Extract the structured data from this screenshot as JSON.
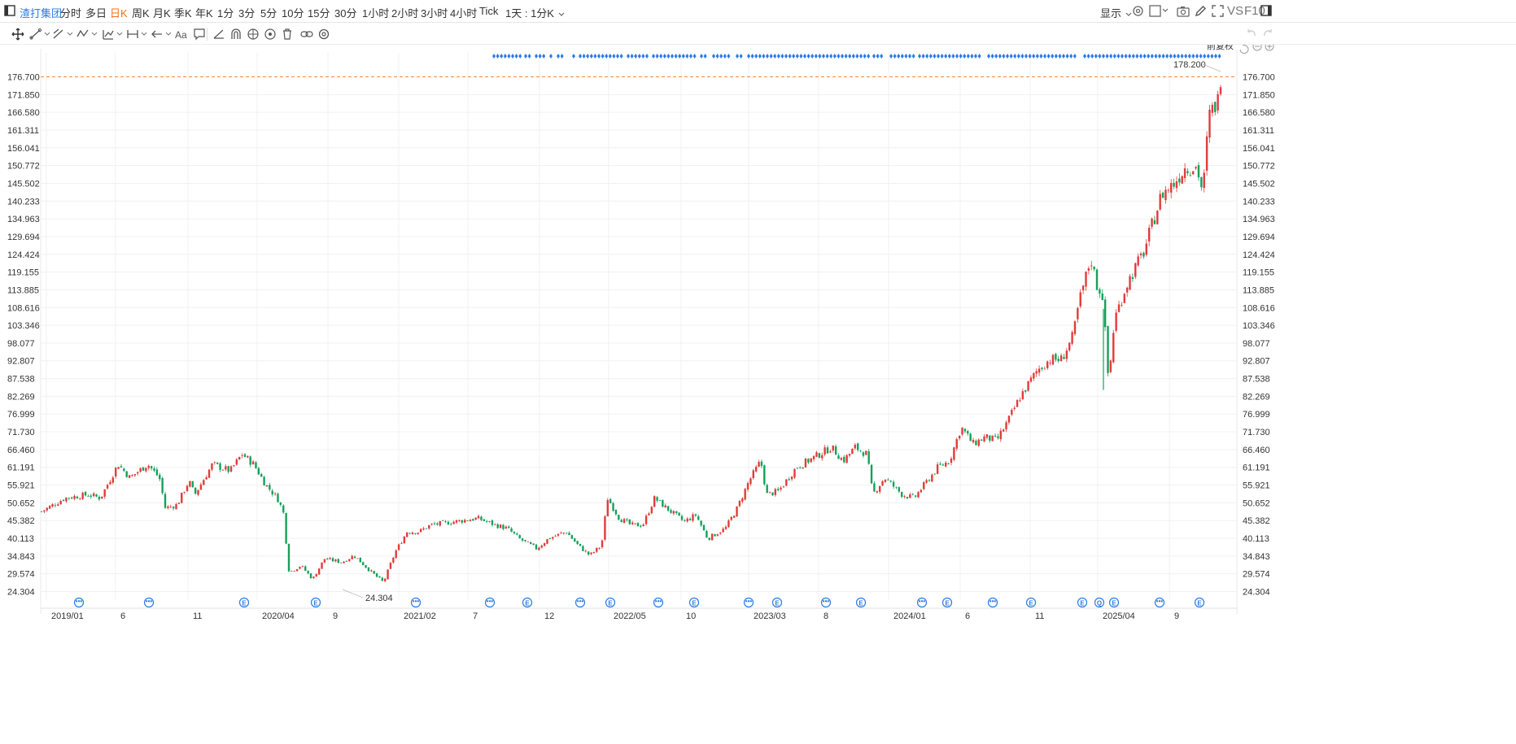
{
  "topbar": {
    "stock_name": "渣打集团",
    "periods": [
      "分时",
      "多日",
      "日K",
      "周K",
      "月K",
      "季K",
      "年K",
      "1分",
      "3分",
      "5分",
      "10分",
      "15分",
      "30分",
      "1小时",
      "2小时",
      "3小时",
      "4小时",
      "Tick"
    ],
    "active_period": "日K",
    "interval_select": "1天 : 1分K",
    "display_label": "显示",
    "vs_label": "VS",
    "f10_label": "F10"
  },
  "toolbar": {
    "icons": [
      "crosshair-move-icon",
      "line-tool-icon",
      "channel-tool-icon",
      "wave-tool-icon",
      "pattern-tool-icon",
      "measure-tool-icon",
      "arrow-tool-icon",
      "text-tool-icon",
      "comment-tool-icon",
      "angle-tool-icon",
      "magnet-icon",
      "visibility-icon",
      "eye-icon",
      "trash-icon",
      "link-icon",
      "settings-icon"
    ],
    "text_tool_label": "Aa"
  },
  "chart": {
    "adjust_label": "前复权",
    "current_price": "176.700",
    "high_label": "178.200",
    "low_label": "24.304",
    "y_ticks": [
      "176.700",
      "171.850",
      "166.580",
      "161.311",
      "156.041",
      "150.772",
      "145.502",
      "140.233",
      "134.963",
      "129.694",
      "124.424",
      "119.155",
      "113.885",
      "108.616",
      "103.346",
      "98.077",
      "92.807",
      "87.538",
      "82.269",
      "76.999",
      "71.730",
      "66.460",
      "61.191",
      "55.921",
      "50.652",
      "45.382",
      "40.113",
      "34.843",
      "29.574",
      "24.304"
    ],
    "x_ticks": [
      "2019/01",
      "6",
      "11",
      "2020/04",
      "9",
      "2021/02",
      "7",
      "12",
      "2022/05",
      "10",
      "2023/03",
      "8",
      "2024/01",
      "6",
      "11",
      "2025/04",
      "9"
    ],
    "event_markers": [
      "...",
      "...",
      "E",
      "E",
      "...",
      "...",
      "E",
      "...",
      "E",
      "...",
      "E",
      "...",
      "E",
      "...",
      "E",
      "...",
      "E",
      "...",
      "E",
      "E",
      "Q",
      "E",
      "...",
      "E"
    ],
    "colors": {
      "up": "#e23b3b",
      "down": "#13a15a",
      "price_line": "#f0883a",
      "dots": "#2a7be4",
      "grid": "#f0f0f0"
    }
  },
  "chart_data": {
    "type": "candlestick",
    "title": "",
    "ylim": [
      24.304,
      178.2
    ],
    "x": [
      "2019/01",
      "2019/06",
      "2019/11",
      "2020/04",
      "2020/09",
      "2021/02",
      "2021/07",
      "2021/12",
      "2022/05",
      "2022/10",
      "2023/03",
      "2023/08",
      "2024/01",
      "2024/06",
      "2024/11",
      "2025/04",
      "2025/09"
    ],
    "series": [
      {
        "name": "",
        "close_path": [
          [
            0,
            48
          ],
          [
            0.02,
            52
          ],
          [
            0.04,
            53
          ],
          [
            0.05,
            52
          ],
          [
            0.065,
            62
          ],
          [
            0.075,
            58
          ],
          [
            0.09,
            62
          ],
          [
            0.1,
            58
          ],
          [
            0.105,
            49
          ],
          [
            0.115,
            50
          ],
          [
            0.125,
            57
          ],
          [
            0.13,
            53
          ],
          [
            0.145,
            62
          ],
          [
            0.16,
            60
          ],
          [
            0.17,
            65
          ],
          [
            0.18,
            62
          ],
          [
            0.19,
            56
          ],
          [
            0.2,
            52
          ],
          [
            0.205,
            48
          ],
          [
            0.21,
            30
          ],
          [
            0.22,
            32
          ],
          [
            0.23,
            28
          ],
          [
            0.24,
            34
          ],
          [
            0.255,
            33
          ],
          [
            0.265,
            35
          ],
          [
            0.28,
            30
          ],
          [
            0.29,
            27
          ],
          [
            0.3,
            36
          ],
          [
            0.31,
            42
          ],
          [
            0.32,
            42
          ],
          [
            0.33,
            44
          ],
          [
            0.35,
            45
          ],
          [
            0.37,
            46
          ],
          [
            0.385,
            44
          ],
          [
            0.395,
            43
          ],
          [
            0.405,
            40
          ],
          [
            0.42,
            37
          ],
          [
            0.43,
            40
          ],
          [
            0.445,
            42
          ],
          [
            0.455,
            38
          ],
          [
            0.465,
            35
          ],
          [
            0.475,
            38
          ],
          [
            0.48,
            52
          ],
          [
            0.49,
            46
          ],
          [
            0.5,
            44
          ],
          [
            0.51,
            44
          ],
          [
            0.52,
            52
          ],
          [
            0.53,
            49
          ],
          [
            0.545,
            45
          ],
          [
            0.555,
            47
          ],
          [
            0.565,
            40
          ],
          [
            0.58,
            43
          ],
          [
            0.59,
            49
          ],
          [
            0.6,
            57
          ],
          [
            0.61,
            63
          ],
          [
            0.615,
            53
          ],
          [
            0.625,
            54
          ],
          [
            0.64,
            61
          ],
          [
            0.655,
            64
          ],
          [
            0.67,
            67
          ],
          [
            0.68,
            63
          ],
          [
            0.69,
            67
          ],
          [
            0.7,
            65
          ],
          [
            0.705,
            53
          ],
          [
            0.715,
            58
          ],
          [
            0.73,
            53
          ],
          [
            0.74,
            52
          ],
          [
            0.76,
            61
          ],
          [
            0.77,
            63
          ],
          [
            0.78,
            73
          ],
          [
            0.79,
            68
          ],
          [
            0.8,
            70
          ],
          [
            0.81,
            69
          ],
          [
            0.82,
            75
          ],
          [
            0.83,
            82
          ],
          [
            0.845,
            90
          ],
          [
            0.855,
            93
          ],
          [
            0.865,
            93
          ],
          [
            0.875,
            100
          ],
          [
            0.88,
            110
          ],
          [
            0.89,
            123
          ],
          [
            0.895,
            115
          ],
          [
            0.9,
            112
          ],
          [
            0.905,
            86
          ],
          [
            0.91,
            105
          ],
          [
            0.92,
            115
          ],
          [
            0.935,
            125
          ],
          [
            0.95,
            142
          ],
          [
            0.96,
            145
          ],
          [
            0.97,
            150
          ],
          [
            0.98,
            150
          ],
          [
            0.985,
            142
          ],
          [
            0.99,
            165
          ],
          [
            0.998,
            170
          ],
          [
            1.0,
            176.7
          ]
        ]
      }
    ]
  }
}
